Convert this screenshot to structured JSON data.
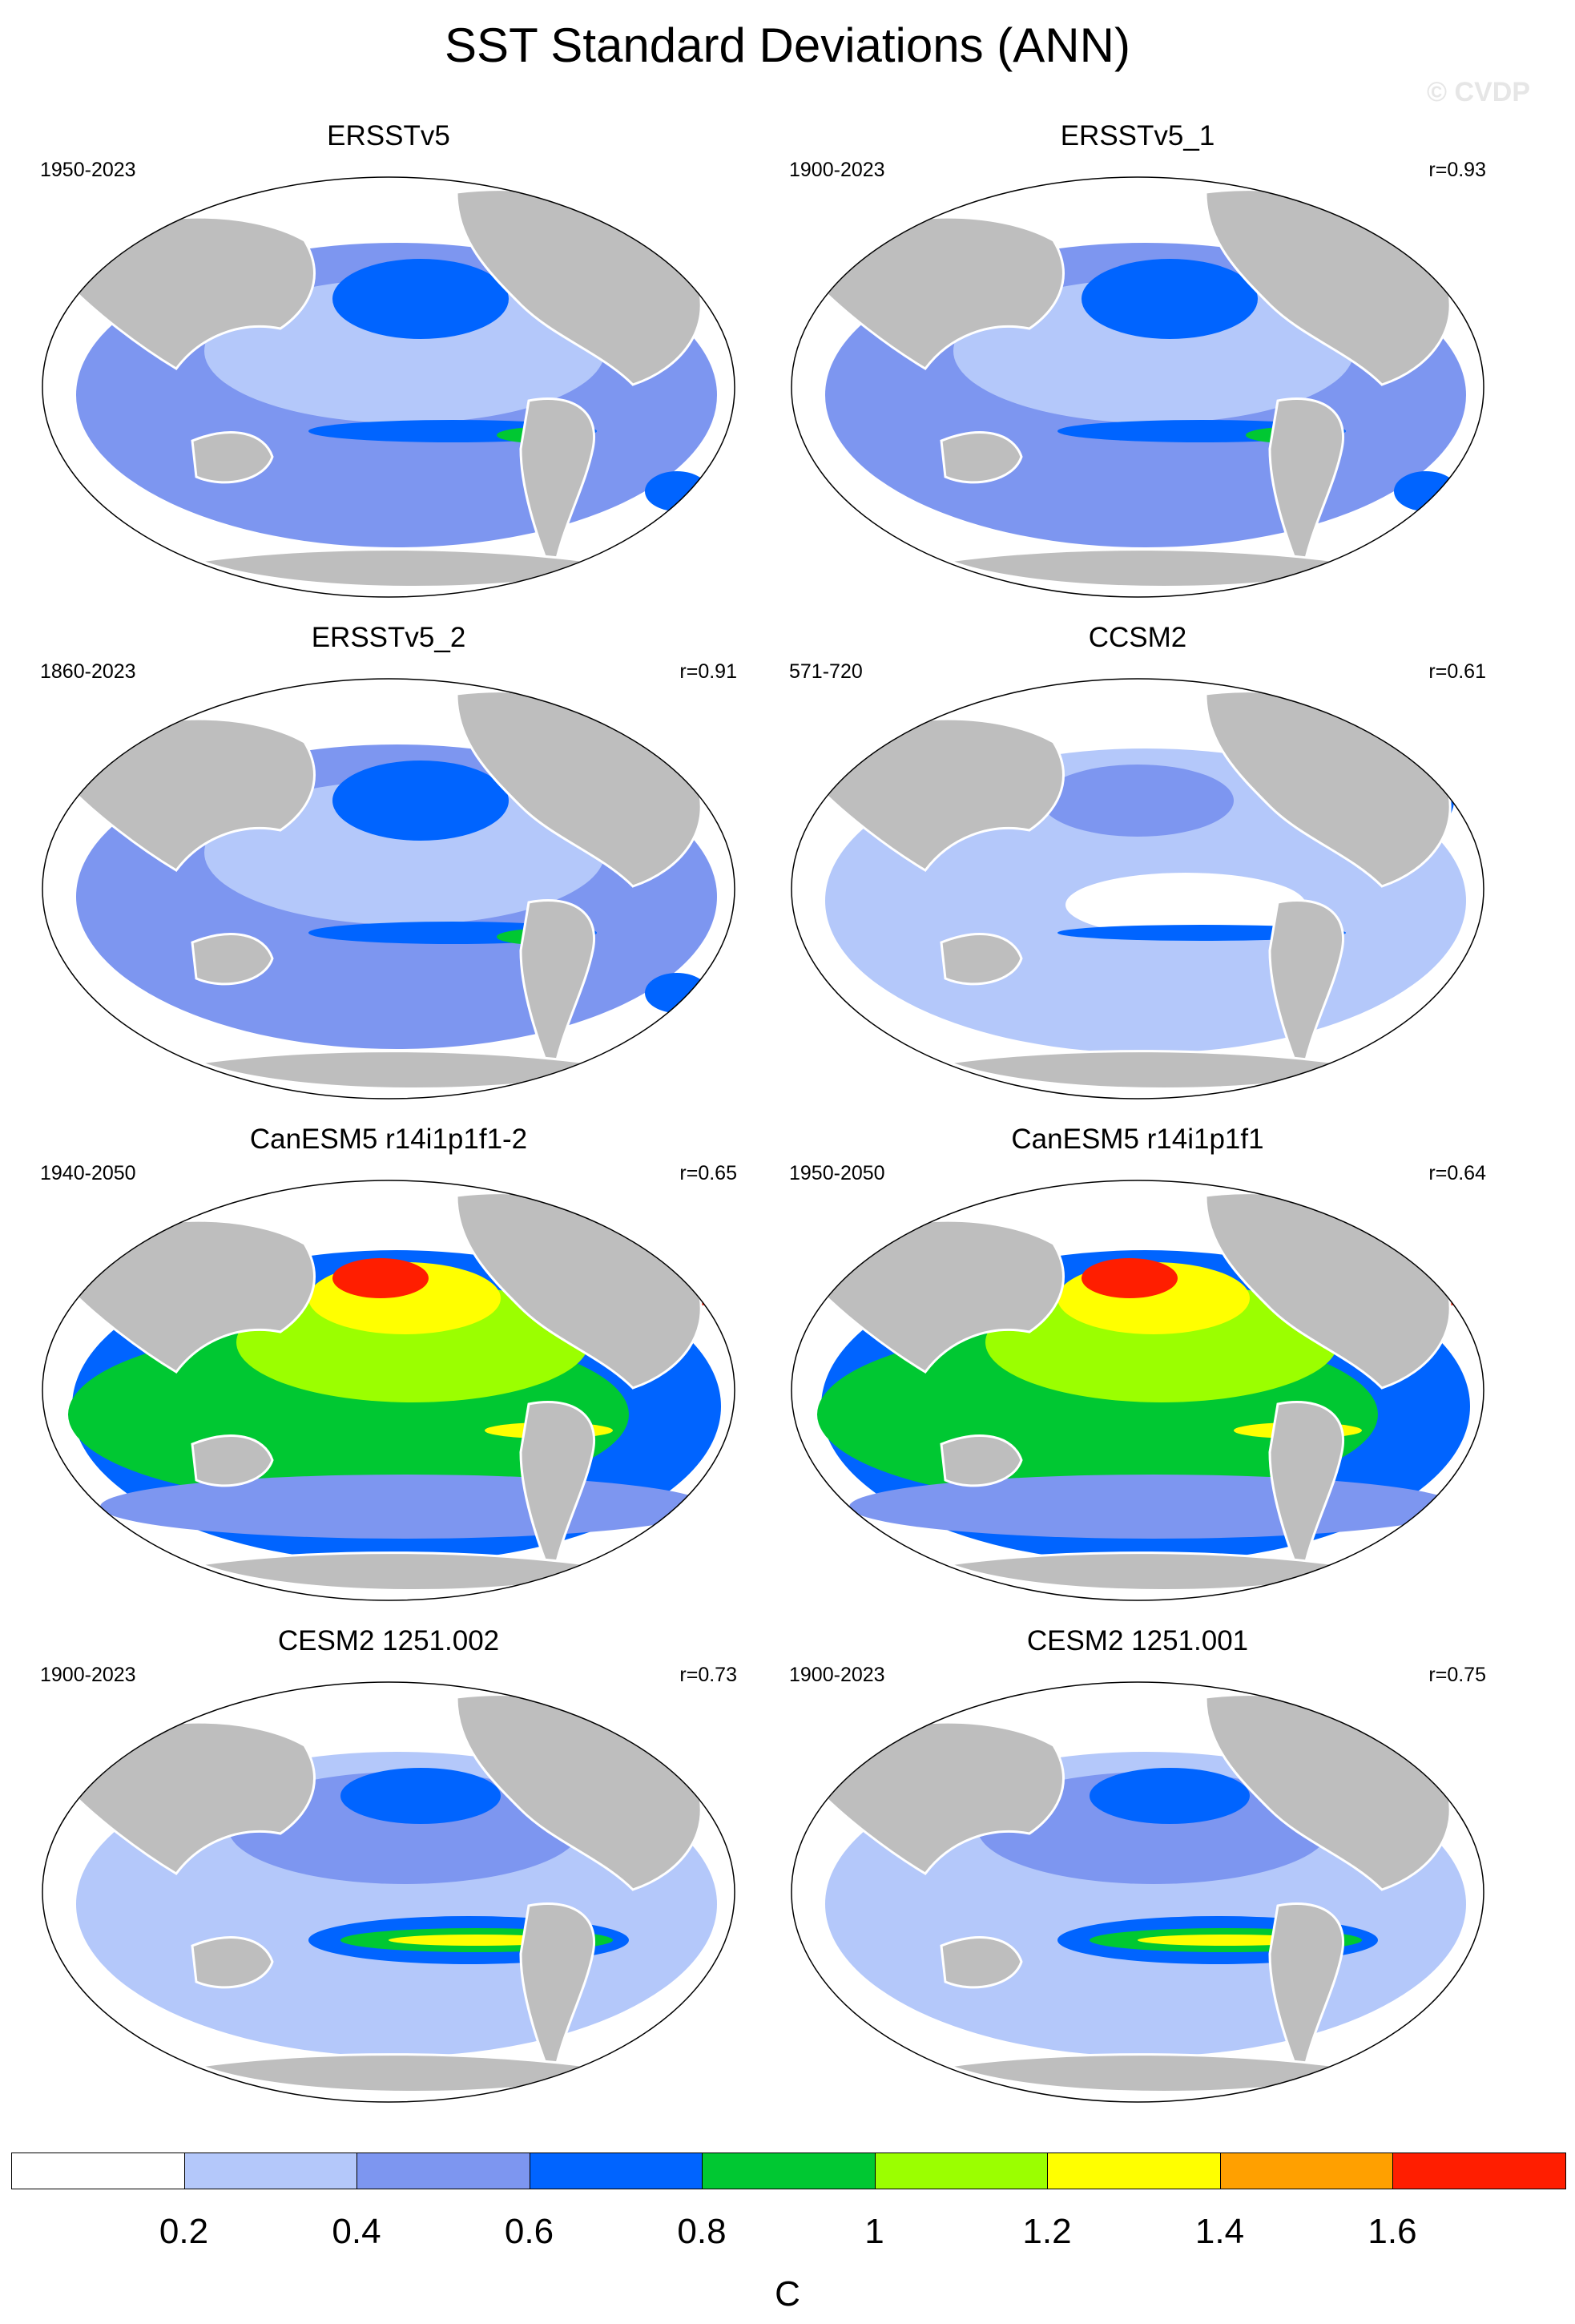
{
  "title": "SST Standard Deviations (ANN)",
  "watermark": "© CVDP",
  "panels": [
    {
      "name": "ERSSTv5",
      "years": "1950-2023",
      "r": "",
      "style": "obs"
    },
    {
      "name": "ERSSTv5_1",
      "years": "1900-2023",
      "r": "r=0.93",
      "style": "obs"
    },
    {
      "name": "ERSSTv5_2",
      "years": "1860-2023",
      "r": "r=0.91",
      "style": "obs"
    },
    {
      "name": "CCSM2",
      "years": "571-720",
      "r": "r=0.61",
      "style": "weak"
    },
    {
      "name": "CanESM5 r14i1p1f1-2",
      "years": "1940-2050",
      "r": "r=0.65",
      "style": "strong"
    },
    {
      "name": "CanESM5 r14i1p1f1",
      "years": "1950-2050",
      "r": "r=0.64",
      "style": "strong"
    },
    {
      "name": "CESM2 1251.002",
      "years": "1900-2023",
      "r": "r=0.73",
      "style": "cesm"
    },
    {
      "name": "CESM2 1251.001",
      "years": "1900-2023",
      "r": "r=0.75",
      "style": "cesm"
    }
  ],
  "colorbar": {
    "colors": [
      "#ffffff",
      "#b4c8fa",
      "#7d96f0",
      "#0064ff",
      "#00c832",
      "#9bff00",
      "#ffff00",
      "#ffa000",
      "#ff1e00"
    ],
    "labels": [
      "0.2",
      "0.4",
      "0.6",
      "0.8",
      "1",
      "1.2",
      "1.4",
      "1.6"
    ],
    "units": "C"
  },
  "chart_data": {
    "type": "heatmap",
    "title": "SST Standard Deviations (ANN)",
    "levels": [
      0.2,
      0.4,
      0.6,
      0.8,
      1.0,
      1.2,
      1.4,
      1.6
    ],
    "units": "C",
    "maps": [
      {
        "name": "ERSSTv5",
        "period": "1950-2023",
        "r": null
      },
      {
        "name": "ERSSTv5_1",
        "period": "1900-2023",
        "r": 0.93
      },
      {
        "name": "ERSSTv5_2",
        "period": "1860-2023",
        "r": 0.91
      },
      {
        "name": "CCSM2",
        "period": "571-720",
        "r": 0.61
      },
      {
        "name": "CanESM5 r14i1p1f1-2",
        "period": "1940-2050",
        "r": 0.65
      },
      {
        "name": "CanESM5 r14i1p1f1",
        "period": "1950-2050",
        "r": 0.64
      },
      {
        "name": "CESM2 1251.002",
        "period": "1900-2023",
        "r": 0.73
      },
      {
        "name": "CESM2 1251.001",
        "period": "1900-2023",
        "r": 0.75
      }
    ]
  }
}
